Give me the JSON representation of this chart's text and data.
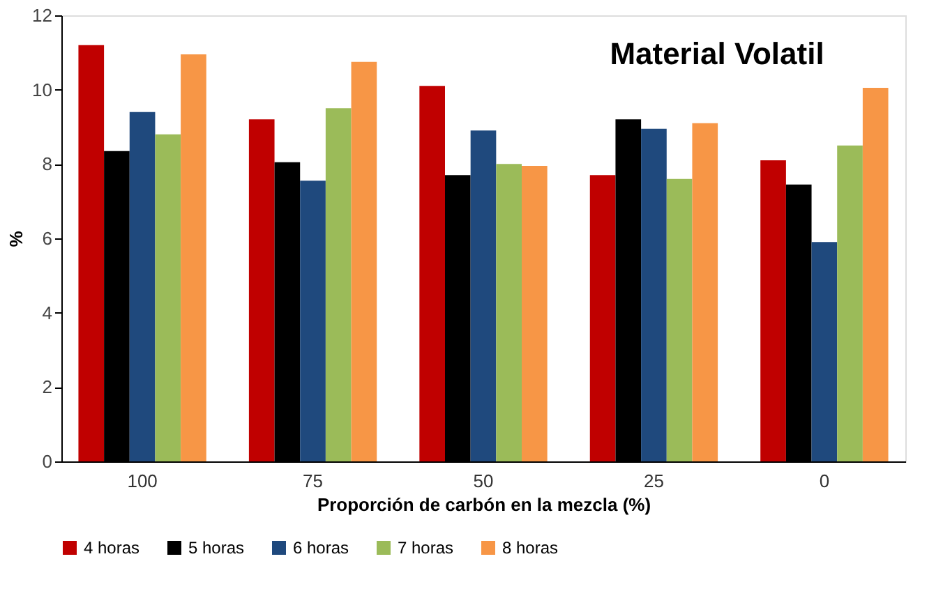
{
  "chart_data": {
    "type": "bar",
    "title": "Material Volatil",
    "xlabel": "Proporción de carbón en la mezcla (%)",
    "ylabel": "%",
    "categories": [
      "100",
      "75",
      "50",
      "25",
      "0"
    ],
    "series": [
      {
        "name": "4 horas",
        "color": "#c00000",
        "values": [
          11.2,
          9.2,
          10.1,
          7.7,
          8.1
        ]
      },
      {
        "name": "5 horas",
        "color": "#000000",
        "values": [
          8.35,
          8.05,
          7.7,
          9.2,
          7.45
        ]
      },
      {
        "name": "6 horas",
        "color": "#1f497d",
        "values": [
          9.4,
          7.55,
          8.9,
          8.95,
          5.9
        ]
      },
      {
        "name": "7 horas",
        "color": "#9bbb59",
        "values": [
          8.8,
          9.5,
          8.0,
          7.6,
          8.5
        ]
      },
      {
        "name": "8 horas",
        "color": "#f79646",
        "values": [
          10.95,
          10.75,
          7.95,
          9.1,
          10.05
        ]
      }
    ],
    "ylim": [
      0,
      12
    ],
    "yticks": [
      0,
      2,
      4,
      6,
      8,
      10,
      12
    ],
    "grid": false,
    "legend": "bottom"
  }
}
